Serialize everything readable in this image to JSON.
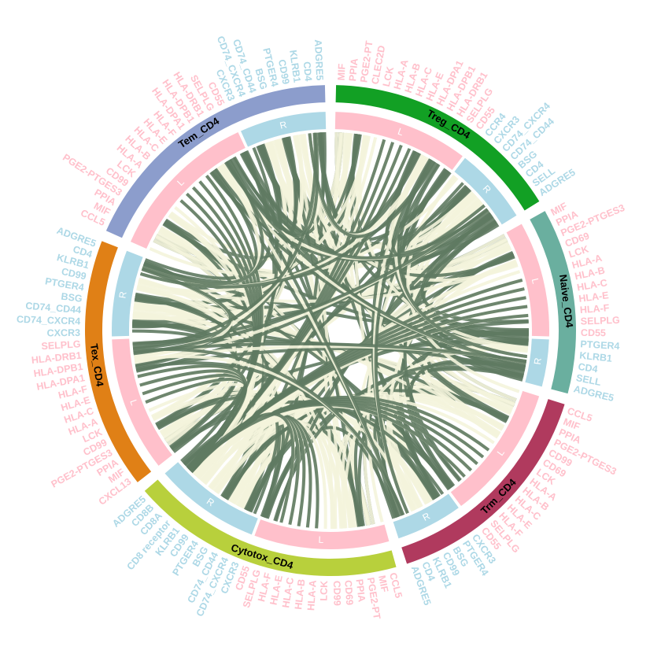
{
  "chart_data": {
    "type": "chord",
    "ligand_tag": "L",
    "receptor_tag": "R",
    "ligand_color": "#ffc0cb",
    "receptor_color": "#add8e6",
    "sectors": [
      {
        "name": "Treg_CD4",
        "color": "#12a024",
        "ligands": [
          "MIF",
          "PPIA",
          "PGE2-PT",
          "CLEC2D",
          "LCK",
          "HLA-A",
          "HLA-B",
          "HLA-C",
          "HLA-E",
          "HLA-DPA1",
          "HLA-DPB1",
          "HLA-DRB1",
          "SELPLG",
          "CD55"
        ],
        "receptors": [
          "CCR4",
          "CXCR3",
          "CD74_CXCR4",
          "CD74_CD44",
          "BSG",
          "CD4",
          "SELL",
          "ADGRE5"
        ]
      },
      {
        "name": "Naive_CD4",
        "color": "#6aaf9f",
        "ligands": [
          "MIF",
          "PPIA",
          "PGE2-PTGES3",
          "CD69",
          "LCK",
          "HLA-A",
          "HLA-B",
          "HLA-C",
          "HLA-E",
          "HLA-F",
          "SELPLG",
          "CD55"
        ],
        "receptors": [
          "PTGER4",
          "KLRB1",
          "CD4",
          "SELL",
          "ADGRE5"
        ]
      },
      {
        "name": "Trm_CD4",
        "color": "#b03a5e",
        "ligands": [
          "CCL5",
          "MIF",
          "PPIA",
          "PGE2-PTGES3",
          "CD99",
          "CD69",
          "LCK",
          "HLA-A",
          "HLA-B",
          "HLA-C",
          "HLA-E",
          "HLA-F",
          "SELPLG",
          "CD55"
        ],
        "receptors": [
          "CXCR3",
          "PTGER4",
          "BSG",
          "CD99",
          "KLRB1",
          "CD4",
          "ADGRE5"
        ]
      },
      {
        "name": "Cytotox_CD4",
        "color": "#b8d03c",
        "ligands": [
          "CCL5",
          "MIF",
          "PGE2-PT",
          "PPIA",
          "CD69",
          "CD99",
          "LCK",
          "HLA-A",
          "HLA-B",
          "HLA-C",
          "HLA-E",
          "HLA-F",
          "SELPLG",
          "CD55"
        ],
        "receptors": [
          "CXCR3",
          "CD74_CXCR4",
          "CD74_CD44",
          "BSG",
          "PTGER4",
          "CD99",
          "KLRB1",
          "CD8 receptor",
          "CD8A",
          "CD8B",
          "ADGRE5"
        ]
      },
      {
        "name": "Tex_CD4",
        "color": "#e08016",
        "ligands": [
          "CXCL13",
          "MIF",
          "PPIA",
          "PGE2-PTGES3",
          "CD99",
          "LCK",
          "HLA-A",
          "HLA-C",
          "HLA-E",
          "HLA-F",
          "HLA-DPA1",
          "HLA-DPB1",
          "HLA-DRB1",
          "SELPLG"
        ],
        "receptors": [
          "CXCR3",
          "CD74_CXCR4",
          "CD74_CD44",
          "BSG",
          "PTGER4",
          "CD99",
          "KLRB1",
          "CD4",
          "ADGRE5"
        ]
      },
      {
        "name": "Tem_CD4",
        "color": "#8c9dcc",
        "ligands": [
          "CCL5",
          "MIF",
          "PPIA",
          "PGE2-PTGES3",
          "CD99",
          "LCK",
          "HLA-A",
          "HLA-B",
          "HLA-C",
          "HLA-E",
          "HLA-F",
          "HLA-DPA1",
          "HLA-DPB1",
          "HLA-DRB1",
          "SELPLG",
          "CD55"
        ],
        "receptors": [
          "CXCR3",
          "CD74_CXCR4",
          "CD74_CD44",
          "BSG",
          "PTGER4",
          "CD99",
          "KLRB1",
          "CD4",
          "ADGRE5"
        ]
      }
    ],
    "links": [
      {
        "ligand": "MIF",
        "receptor": "CD74_CXCR4",
        "color": "#5f7a62"
      },
      {
        "ligand": "MIF",
        "receptor": "CD74_CD44",
        "color": "#f4f4dc"
      },
      {
        "ligand": "PPIA",
        "receptor": "BSG",
        "color": "#f4f4dc"
      },
      {
        "ligand": "PGE2-PTGES3",
        "receptor": "PTGER4",
        "color": "#5f7a62"
      },
      {
        "ligand": "PGE2-PT",
        "receptor": "PTGER4",
        "color": "#5f7a62"
      },
      {
        "ligand": "CD99",
        "receptor": "CD99",
        "color": "#f4f4dc"
      },
      {
        "ligand": "CD55",
        "receptor": "ADGRE5",
        "color": "#5f7a62"
      },
      {
        "ligand": "CLEC2D",
        "receptor": "KLRB1",
        "color": "#f4f4dc"
      },
      {
        "ligand": "CD69",
        "receptor": "KLRB1",
        "color": "#f4f4dc"
      },
      {
        "ligand": "SELPLG",
        "receptor": "SELL",
        "color": "#5f7a62"
      },
      {
        "ligand": "CCL5",
        "receptor": "CCR4",
        "color": "#f4f4dc"
      },
      {
        "ligand": "CXCL13",
        "receptor": "CXCR3",
        "color": "#5f7a62"
      },
      {
        "ligand": "LCK",
        "receptor": "CD8 receptor",
        "color": "#f4f4dc"
      },
      {
        "ligand": "HLA-A",
        "receptor": "CD8A",
        "color": "#f4f4dc"
      },
      {
        "ligand": "HLA-A",
        "receptor": "CD8B",
        "color": "#5f7a62"
      },
      {
        "ligand": "HLA-B",
        "receptor": "CD8A",
        "color": "#f4f4dc"
      },
      {
        "ligand": "HLA-B",
        "receptor": "CD8B",
        "color": "#5f7a62"
      },
      {
        "ligand": "HLA-C",
        "receptor": "CD8A",
        "color": "#f4f4dc"
      },
      {
        "ligand": "HLA-C",
        "receptor": "CD8B",
        "color": "#5f7a62"
      },
      {
        "ligand": "HLA-E",
        "receptor": "CD8A",
        "color": "#f4f4dc"
      },
      {
        "ligand": "HLA-E",
        "receptor": "CD8B",
        "color": "#5f7a62"
      },
      {
        "ligand": "HLA-F",
        "receptor": "CD8A",
        "color": "#f4f4dc"
      },
      {
        "ligand": "HLA-F",
        "receptor": "CD8B",
        "color": "#5f7a62"
      },
      {
        "ligand": "HLA-DPA1",
        "receptor": "CD4",
        "color": "#5f7a62"
      },
      {
        "ligand": "HLA-DPB1",
        "receptor": "CD4",
        "color": "#f4f4dc"
      },
      {
        "ligand": "HLA-DRB1",
        "receptor": "CD4",
        "color": "#5f7a62"
      }
    ]
  }
}
